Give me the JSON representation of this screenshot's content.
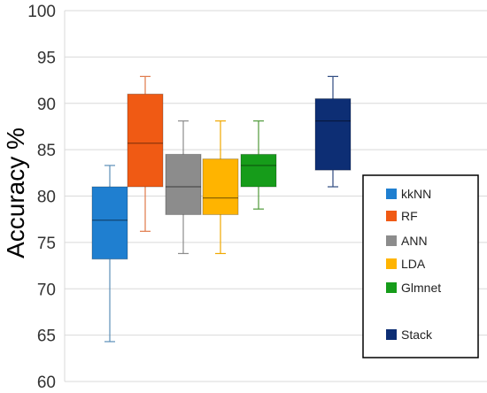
{
  "chart_data": {
    "type": "box",
    "ylabel": "Accuracy %",
    "ylim": [
      60,
      100
    ],
    "yticks": [
      60,
      65,
      70,
      75,
      80,
      85,
      90,
      95,
      100
    ],
    "grid": true,
    "legend_position": "bottom-right",
    "series": [
      {
        "name": "kkNN",
        "color": "#1f7fd0",
        "whisker_color": "#5b8fb8",
        "min": 64.3,
        "q1": 73.2,
        "median": 77.4,
        "q3": 81.0,
        "max": 83.3
      },
      {
        "name": "RF",
        "color": "#f05a14",
        "whisker_color": "#e07a4a",
        "min": 76.2,
        "q1": 81.0,
        "median": 85.7,
        "q3": 91.0,
        "max": 92.9
      },
      {
        "name": "ANN",
        "color": "#8c8c8c",
        "whisker_color": "#8c8c8c",
        "min": 73.8,
        "q1": 78.0,
        "median": 81.0,
        "q3": 84.5,
        "max": 88.1
      },
      {
        "name": "LDA",
        "color": "#ffb400",
        "whisker_color": "#f0a800",
        "min": 73.8,
        "q1": 78.0,
        "median": 79.8,
        "q3": 84.0,
        "max": 88.1
      },
      {
        "name": "Glmnet",
        "color": "#169c1a",
        "whisker_color": "#4f9a3a",
        "min": 78.6,
        "q1": 81.0,
        "median": 83.3,
        "q3": 84.5,
        "max": 88.1
      },
      {
        "name": "Stack",
        "color": "#0d2e74",
        "whisker_color": "#2e4a80",
        "min": 81.0,
        "q1": 82.8,
        "median": 88.1,
        "q3": 90.5,
        "max": 92.9
      }
    ]
  }
}
